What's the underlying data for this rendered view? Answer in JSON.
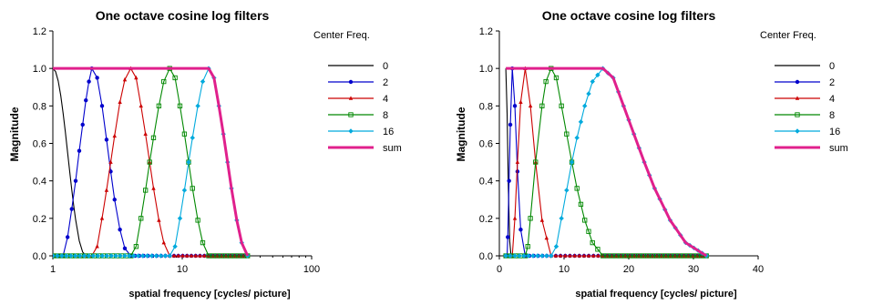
{
  "chart_data": [
    {
      "type": "line",
      "title": "One octave cosine log filters",
      "xlabel": "spatial frequency [cycles/ picture]",
      "ylabel": "Magnitude",
      "x_scale": "log",
      "xlim": [
        1,
        100
      ],
      "ylim": [
        0,
        1.2
      ],
      "x_ticks": [
        "1",
        "10",
        "100"
      ],
      "y_ticks": [
        "0.0",
        "0.2",
        "0.4",
        "0.6",
        "0.8",
        "1.0",
        "1.2"
      ],
      "legend_title": "Center Freq.",
      "legend_position": "right",
      "series": [
        {
          "name": "0",
          "color": "#000000",
          "marker": "none",
          "points": [
            [
              1,
              1.0
            ],
            [
              1.05,
              0.983
            ],
            [
              1.1,
              0.933
            ],
            [
              1.15,
              0.857
            ],
            [
              1.2,
              0.762
            ],
            [
              1.25,
              0.659
            ],
            [
              1.3,
              0.552
            ],
            [
              1.35,
              0.449
            ],
            [
              1.4,
              0.353
            ],
            [
              1.45,
              0.267
            ],
            [
              1.5,
              0.193
            ],
            [
              1.6,
              0.08
            ],
            [
              1.7,
              0.02
            ],
            [
              1.8,
              0.002
            ],
            [
              2,
              0
            ],
            [
              32,
              0
            ]
          ]
        },
        {
          "name": "2",
          "color": "#0000cc",
          "marker": "circle",
          "points": [
            [
              1,
              0
            ],
            [
              1.1,
              0
            ],
            [
              1.2,
              0
            ],
            [
              1.3,
              0.1
            ],
            [
              1.4,
              0.25
            ],
            [
              1.5,
              0.4
            ],
            [
              1.6,
              0.56
            ],
            [
              1.7,
              0.7
            ],
            [
              1.8,
              0.83
            ],
            [
              1.9,
              0.93
            ],
            [
              2,
              1.0
            ],
            [
              2.2,
              0.95
            ],
            [
              2.4,
              0.8
            ],
            [
              2.6,
              0.62
            ],
            [
              2.8,
              0.45
            ],
            [
              3,
              0.3
            ],
            [
              3.3,
              0.14
            ],
            [
              3.6,
              0.04
            ],
            [
              4,
              0
            ],
            [
              8,
              0
            ],
            [
              16,
              0
            ],
            [
              32,
              0
            ]
          ]
        },
        {
          "name": "4",
          "color": "#cc0000",
          "marker": "triangle",
          "points": [
            [
              1,
              0
            ],
            [
              2,
              0
            ],
            [
              2.2,
              0.05
            ],
            [
              2.4,
              0.2
            ],
            [
              2.6,
              0.35
            ],
            [
              2.8,
              0.5
            ],
            [
              3,
              0.64
            ],
            [
              3.3,
              0.82
            ],
            [
              3.6,
              0.94
            ],
            [
              4,
              1.0
            ],
            [
              4.4,
              0.95
            ],
            [
              4.8,
              0.8
            ],
            [
              5.2,
              0.65
            ],
            [
              5.6,
              0.5
            ],
            [
              6,
              0.36
            ],
            [
              6.6,
              0.19
            ],
            [
              7.2,
              0.07
            ],
            [
              8,
              0
            ],
            [
              16,
              0
            ],
            [
              32,
              0
            ]
          ]
        },
        {
          "name": "8",
          "color": "#008800",
          "marker": "square",
          "points": [
            [
              1,
              0
            ],
            [
              4,
              0
            ],
            [
              4.4,
              0.05
            ],
            [
              4.8,
              0.2
            ],
            [
              5.2,
              0.35
            ],
            [
              5.6,
              0.5
            ],
            [
              6,
              0.63
            ],
            [
              6.6,
              0.8
            ],
            [
              7.2,
              0.93
            ],
            [
              8,
              1.0
            ],
            [
              8.8,
              0.95
            ],
            [
              9.6,
              0.8
            ],
            [
              10.4,
              0.65
            ],
            [
              11.2,
              0.5
            ],
            [
              12,
              0.36
            ],
            [
              13.2,
              0.19
            ],
            [
              14.4,
              0.07
            ],
            [
              16,
              0
            ],
            [
              32,
              0
            ]
          ]
        },
        {
          "name": "16",
          "color": "#00aadd",
          "marker": "diamond",
          "points": [
            [
              1,
              0
            ],
            [
              8,
              0
            ],
            [
              8.8,
              0.05
            ],
            [
              9.6,
              0.2
            ],
            [
              10.4,
              0.35
            ],
            [
              11.2,
              0.5
            ],
            [
              12,
              0.63
            ],
            [
              13.2,
              0.8
            ],
            [
              14.4,
              0.93
            ],
            [
              16,
              1.0
            ],
            [
              17.6,
              0.95
            ],
            [
              19.2,
              0.8
            ],
            [
              20.8,
              0.65
            ],
            [
              22.4,
              0.5
            ],
            [
              24,
              0.36
            ],
            [
              26.4,
              0.19
            ],
            [
              28.8,
              0.07
            ],
            [
              32,
              0
            ]
          ]
        },
        {
          "name": "sum",
          "color": "#e0208c",
          "marker": "none",
          "width": 3,
          "points": [
            [
              1,
              1.0
            ],
            [
              16,
              1.0
            ],
            [
              17.6,
              0.95
            ],
            [
              19.2,
              0.8
            ],
            [
              20.8,
              0.65
            ],
            [
              22.4,
              0.5
            ],
            [
              24,
              0.36
            ],
            [
              26.4,
              0.19
            ],
            [
              28.8,
              0.07
            ],
            [
              32,
              0
            ]
          ]
        }
      ]
    },
    {
      "type": "line",
      "title": "One octave cosine log filters",
      "xlabel": "spatial frequency [cycles/ picture]",
      "ylabel": "Magnitude",
      "x_scale": "linear",
      "xlim": [
        0,
        40
      ],
      "ylim": [
        0,
        1.2
      ],
      "x_ticks": [
        "0",
        "10",
        "20",
        "30",
        "40"
      ],
      "y_ticks": [
        "0.0",
        "0.2",
        "0.4",
        "0.6",
        "0.8",
        "1.0",
        "1.2"
      ],
      "legend_title": "Center Freq.",
      "legend_position": "right",
      "series": [
        {
          "name": "0",
          "color": "#000000",
          "marker": "none",
          "points": [
            [
              1,
              1.0
            ],
            [
              1.2,
              0.76
            ],
            [
              1.4,
              0.35
            ],
            [
              1.6,
              0.08
            ],
            [
              1.8,
              0.002
            ],
            [
              2,
              0
            ],
            [
              32,
              0
            ]
          ]
        },
        {
          "name": "2",
          "color": "#0000cc",
          "marker": "circle",
          "points": [
            [
              1,
              0
            ],
            [
              1.2,
              0
            ],
            [
              1.3,
              0.1
            ],
            [
              1.5,
              0.4
            ],
            [
              1.7,
              0.7
            ],
            [
              2,
              1.0
            ],
            [
              2.4,
              0.8
            ],
            [
              2.8,
              0.45
            ],
            [
              3.3,
              0.14
            ],
            [
              4,
              0
            ],
            [
              8,
              0
            ],
            [
              16,
              0
            ],
            [
              32,
              0
            ]
          ]
        },
        {
          "name": "4",
          "color": "#cc0000",
          "marker": "triangle",
          "points": [
            [
              1,
              0
            ],
            [
              2,
              0
            ],
            [
              2.4,
              0.2
            ],
            [
              2.8,
              0.5
            ],
            [
              3.3,
              0.82
            ],
            [
              4,
              1.0
            ],
            [
              4.8,
              0.8
            ],
            [
              5.6,
              0.5
            ],
            [
              6.6,
              0.19
            ],
            [
              8,
              0
            ],
            [
              16,
              0
            ],
            [
              32,
              0
            ]
          ]
        },
        {
          "name": "8",
          "color": "#008800",
          "marker": "square",
          "points": [
            [
              1,
              0
            ],
            [
              4,
              0
            ],
            [
              4.4,
              0.05
            ],
            [
              4.8,
              0.2
            ],
            [
              5.6,
              0.5
            ],
            [
              6.6,
              0.8
            ],
            [
              7.2,
              0.93
            ],
            [
              8,
              1.0
            ],
            [
              8.8,
              0.95
            ],
            [
              9.6,
              0.8
            ],
            [
              10.4,
              0.65
            ],
            [
              11.2,
              0.5
            ],
            [
              12,
              0.36
            ],
            [
              13.2,
              0.19
            ],
            [
              14.4,
              0.07
            ],
            [
              16,
              0
            ],
            [
              32,
              0
            ]
          ]
        },
        {
          "name": "16",
          "color": "#00aadd",
          "marker": "diamond",
          "points": [
            [
              1,
              0
            ],
            [
              8,
              0
            ],
            [
              8.8,
              0.05
            ],
            [
              9.6,
              0.2
            ],
            [
              10.4,
              0.35
            ],
            [
              11.2,
              0.5
            ],
            [
              12,
              0.63
            ],
            [
              13.2,
              0.8
            ],
            [
              14.4,
              0.93
            ],
            [
              16,
              1.0
            ],
            [
              17.6,
              0.95
            ],
            [
              19.2,
              0.8
            ],
            [
              20.8,
              0.65
            ],
            [
              22.4,
              0.5
            ],
            [
              24,
              0.36
            ],
            [
              26.4,
              0.19
            ],
            [
              28.8,
              0.07
            ],
            [
              32,
              0
            ]
          ]
        },
        {
          "name": "sum",
          "color": "#e0208c",
          "marker": "none",
          "width": 3,
          "points": [
            [
              1,
              1.0
            ],
            [
              16,
              1.0
            ],
            [
              17.6,
              0.95
            ],
            [
              19.2,
              0.8
            ],
            [
              20.8,
              0.65
            ],
            [
              22.4,
              0.5
            ],
            [
              24,
              0.36
            ],
            [
              26.4,
              0.19
            ],
            [
              28.8,
              0.07
            ],
            [
              32,
              0
            ]
          ]
        }
      ]
    }
  ]
}
